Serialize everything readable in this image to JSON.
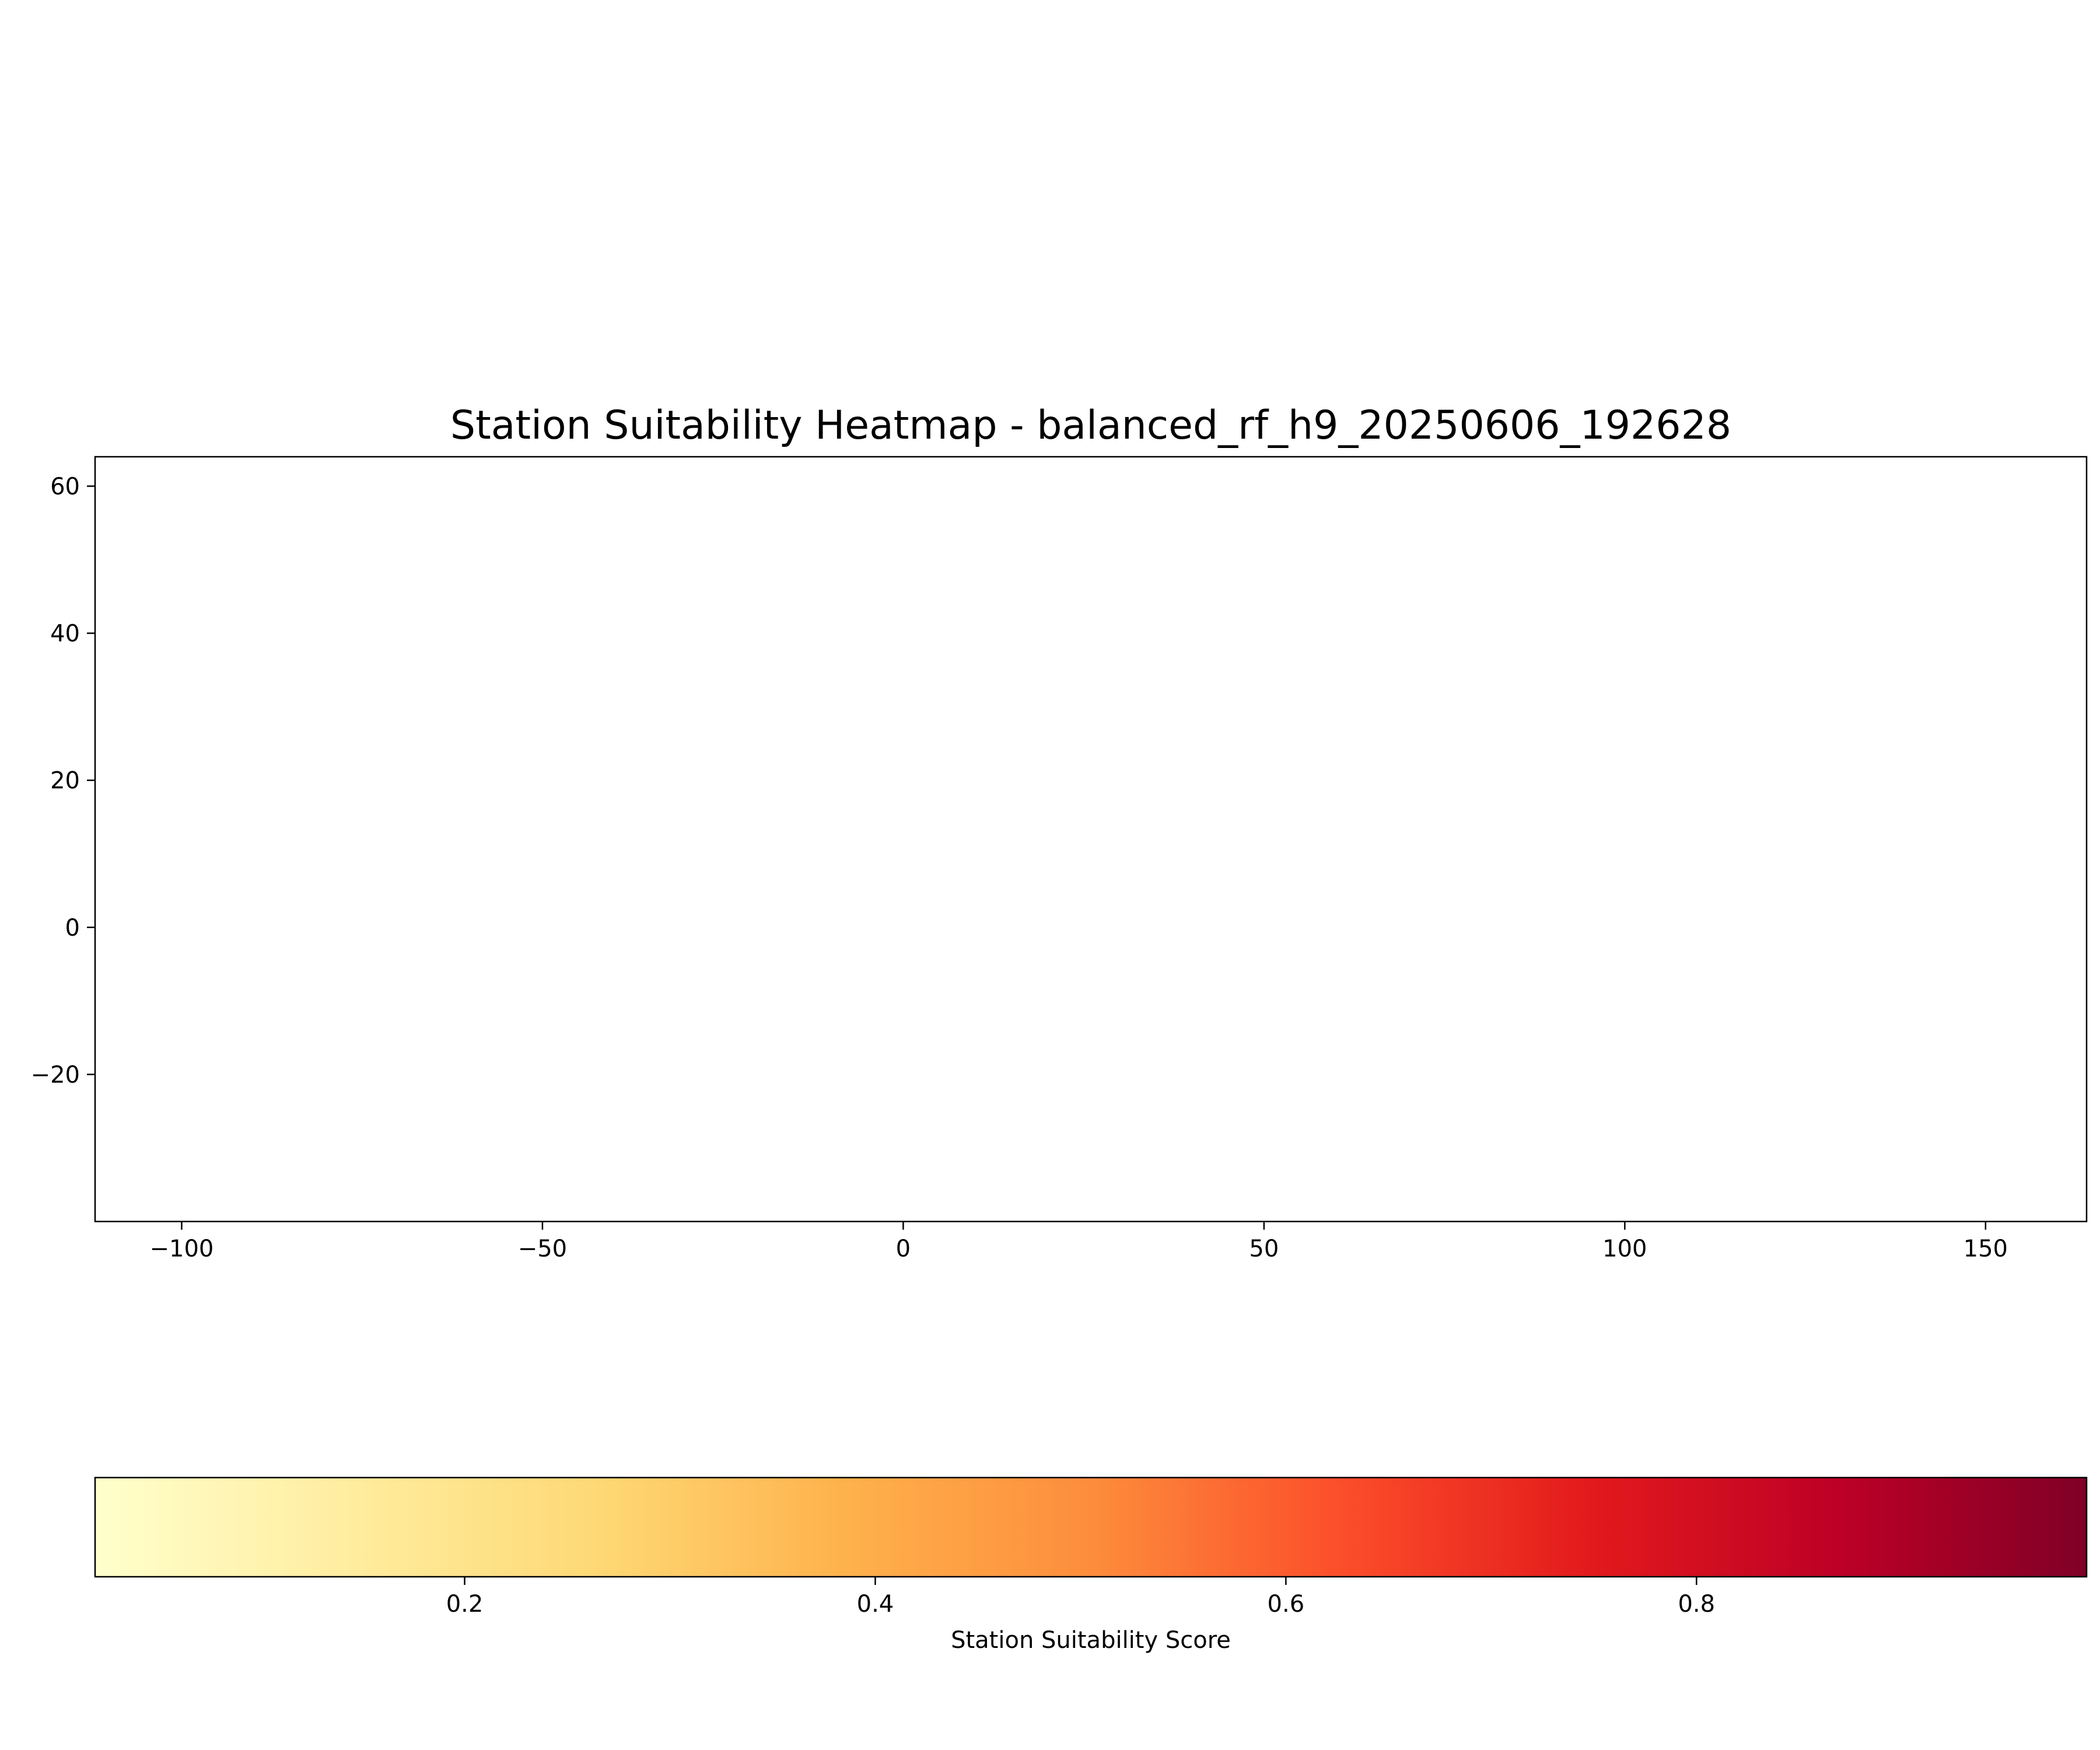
{
  "chart_data": {
    "type": "heatmap",
    "title": "Station Suitability Heatmap - balanced_rf_h9_20250606_192628",
    "xlabel": "",
    "ylabel": "",
    "xlim": [
      -112,
      164
    ],
    "ylim": [
      -40,
      64
    ],
    "x_ticks": [
      -100,
      -50,
      0,
      50,
      100,
      150
    ],
    "x_tick_labels": [
      "−100",
      "−50",
      "0",
      "50",
      "100",
      "150"
    ],
    "y_ticks": [
      -20,
      0,
      20,
      40,
      60
    ],
    "y_tick_labels": [
      "−20",
      "0",
      "20",
      "40",
      "60"
    ],
    "points": [],
    "grid": false,
    "colorbar": {
      "label": "Station Suitability Score",
      "orientation": "horizontal",
      "colormap": "YlOrRd",
      "range": [
        0.02,
        0.99
      ],
      "ticks": [
        0.2,
        0.4,
        0.6,
        0.8
      ],
      "tick_labels": [
        "0.2",
        "0.4",
        "0.6",
        "0.8"
      ],
      "colors": [
        "#ffffcc",
        "#ffeda0",
        "#fed976",
        "#feb24c",
        "#fd8d3c",
        "#fc4e2a",
        "#e31a1c",
        "#bd0026",
        "#800026"
      ]
    }
  }
}
